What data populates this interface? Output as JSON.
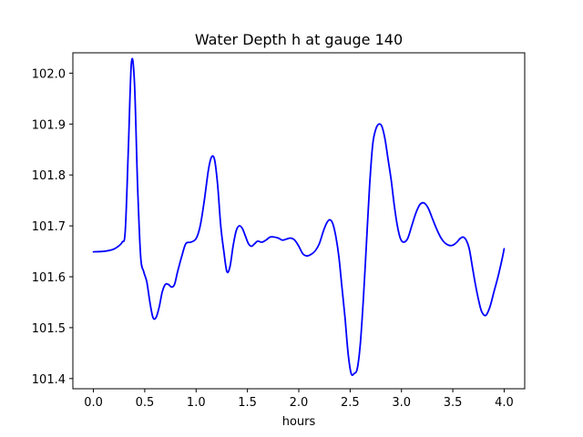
{
  "chart_data": {
    "type": "line",
    "title": "Water Depth h at gauge 140",
    "xlabel": "hours",
    "ylabel": "",
    "xlim": [
      -0.2,
      4.2
    ],
    "ylim": [
      101.38,
      102.04
    ],
    "xticks": [
      0.0,
      0.5,
      1.0,
      1.5,
      2.0,
      2.5,
      3.0,
      3.5,
      4.0
    ],
    "xtick_labels": [
      "0.0",
      "0.5",
      "1.0",
      "1.5",
      "2.0",
      "2.5",
      "3.0",
      "3.5",
      "4.0"
    ],
    "yticks": [
      101.4,
      101.5,
      101.6,
      101.7,
      101.8,
      101.9,
      102.0
    ],
    "ytick_labels": [
      "101.4",
      "101.5",
      "101.6",
      "101.7",
      "101.8",
      "101.9",
      "102.0"
    ],
    "grid": false,
    "legend": "none",
    "series": [
      {
        "color": "#0000ff",
        "x": [
          0.0,
          0.1,
          0.18,
          0.23,
          0.28,
          0.31,
          0.34,
          0.37,
          0.4,
          0.43,
          0.46,
          0.49,
          0.52,
          0.55,
          0.58,
          0.61,
          0.64,
          0.67,
          0.7,
          0.73,
          0.76,
          0.79,
          0.82,
          0.86,
          0.9,
          0.95,
          1.0,
          1.04,
          1.08,
          1.12,
          1.15,
          1.18,
          1.21,
          1.24,
          1.27,
          1.3,
          1.33,
          1.36,
          1.39,
          1.42,
          1.45,
          1.48,
          1.51,
          1.54,
          1.57,
          1.6,
          1.64,
          1.68,
          1.72,
          1.76,
          1.8,
          1.84,
          1.88,
          1.92,
          1.96,
          2.0,
          2.04,
          2.08,
          2.12,
          2.16,
          2.2,
          2.24,
          2.27,
          2.3,
          2.33,
          2.36,
          2.39,
          2.42,
          2.45,
          2.48,
          2.51,
          2.54,
          2.57,
          2.6,
          2.63,
          2.66,
          2.69,
          2.72,
          2.75,
          2.78,
          2.81,
          2.84,
          2.87,
          2.9,
          2.93,
          2.96,
          2.99,
          3.02,
          3.06,
          3.1,
          3.14,
          3.18,
          3.22,
          3.26,
          3.3,
          3.34,
          3.38,
          3.42,
          3.46,
          3.5,
          3.54,
          3.57,
          3.6,
          3.63,
          3.66,
          3.69,
          3.72,
          3.75,
          3.78,
          3.82,
          3.86,
          3.9,
          3.94,
          3.98,
          4.0
        ],
        "values": [
          101.649,
          101.65,
          101.653,
          101.658,
          101.668,
          101.69,
          101.85,
          102.02,
          101.98,
          101.78,
          101.64,
          101.61,
          101.59,
          101.55,
          101.52,
          101.52,
          101.54,
          101.57,
          101.585,
          101.585,
          101.58,
          101.585,
          101.61,
          101.64,
          101.665,
          101.668,
          101.675,
          101.7,
          101.75,
          101.81,
          101.835,
          101.83,
          101.78,
          101.7,
          101.65,
          101.61,
          101.62,
          101.66,
          101.69,
          101.7,
          101.695,
          101.68,
          101.665,
          101.66,
          101.665,
          101.67,
          101.668,
          101.672,
          101.678,
          101.678,
          101.676,
          101.672,
          101.674,
          101.676,
          101.672,
          101.66,
          101.645,
          101.641,
          101.644,
          101.651,
          101.665,
          101.69,
          101.705,
          101.712,
          101.705,
          101.68,
          101.64,
          101.58,
          101.52,
          101.45,
          101.41,
          101.41,
          101.42,
          101.47,
          101.56,
          101.67,
          101.78,
          101.86,
          101.89,
          101.9,
          101.895,
          101.87,
          101.83,
          101.79,
          101.74,
          101.7,
          101.675,
          101.668,
          101.675,
          101.7,
          101.725,
          101.742,
          101.745,
          101.735,
          101.715,
          101.695,
          101.678,
          101.667,
          101.662,
          101.662,
          101.668,
          101.675,
          101.678,
          101.672,
          101.655,
          101.62,
          101.585,
          101.555,
          101.532,
          101.524,
          101.54,
          101.57,
          101.6,
          101.635,
          101.655
        ]
      }
    ]
  }
}
